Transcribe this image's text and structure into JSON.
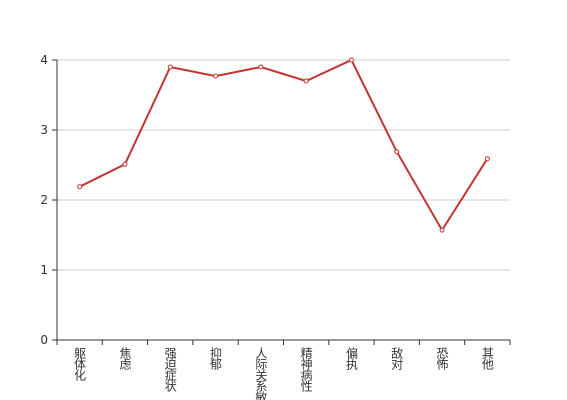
{
  "chart_data": {
    "type": "line",
    "categories": [
      "躯体化",
      "焦虑",
      "强迫症状",
      "抑郁",
      "人际关系敏感",
      "精神病性",
      "偏执",
      "敌对",
      "恐怖",
      "其他"
    ],
    "values": [
      2.19,
      2.51,
      3.9,
      3.77,
      3.9,
      3.7,
      4.0,
      2.69,
      1.57,
      2.59
    ],
    "color": "#c23531",
    "ylim": [
      0,
      4
    ],
    "yticks": [
      0,
      1,
      2,
      3,
      4
    ],
    "grid": true
  }
}
